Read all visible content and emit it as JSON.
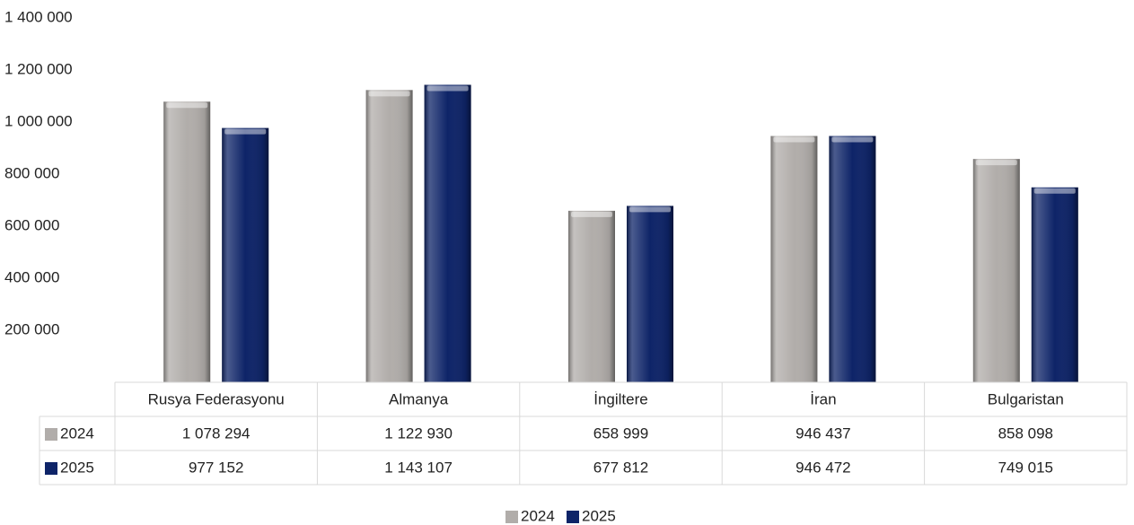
{
  "chart_data": {
    "type": "bar",
    "categories": [
      "Rusya Federasyonu",
      "Almanya",
      "İngiltere",
      "İran",
      "Bulgaristan"
    ],
    "series": [
      {
        "name": "2024",
        "color": "#b1adaa",
        "values": [
          1078294,
          1122930,
          658999,
          946437,
          858098
        ],
        "value_labels": [
          "1 078 294",
          "1 122 930",
          "658 999",
          "946 437",
          "858 098"
        ]
      },
      {
        "name": "2025",
        "color": "#0e2468",
        "values": [
          977152,
          1143107,
          677812,
          946472,
          749015
        ],
        "value_labels": [
          "977 152",
          "1 143 107",
          "677 812",
          "946 472",
          "749 015"
        ]
      }
    ],
    "ylim": [
      0,
      1400000
    ],
    "yticks": [
      {
        "value": 200000,
        "label": "200 000"
      },
      {
        "value": 400000,
        "label": "400 000"
      },
      {
        "value": 600000,
        "label": "600 000"
      },
      {
        "value": 800000,
        "label": "800 000"
      },
      {
        "value": 1000000,
        "label": "1 000 000"
      },
      {
        "value": 1200000,
        "label": "1 200 000"
      },
      {
        "value": 1400000,
        "label": "1 400 000"
      }
    ],
    "legend": "bottom",
    "data_table": true
  }
}
